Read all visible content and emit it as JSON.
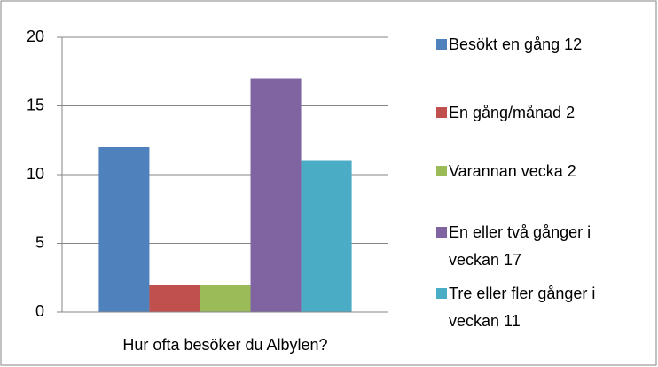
{
  "chart_data": {
    "type": "bar",
    "categories": [
      "Hur ofta besöker du Albylen?"
    ],
    "series": [
      {
        "name": "Besökt en gång 12",
        "color": "#4f81bd",
        "values": [
          12
        ]
      },
      {
        "name": "En gång/månad 2",
        "color": "#c0504d",
        "values": [
          2
        ]
      },
      {
        "name": "Varannan vecka 2",
        "color": "#9bbb59",
        "values": [
          2
        ]
      },
      {
        "name": "En eller två gånger i veckan 17",
        "color": "#8064a2",
        "values": [
          17
        ]
      },
      {
        "name": "Tre eller fler gånger i veckan 11",
        "color": "#4bacc6",
        "values": [
          11
        ]
      }
    ],
    "ylim": [
      0,
      20
    ],
    "yticks": [
      0,
      5,
      10,
      15,
      20
    ],
    "grid": true,
    "legend": "right"
  }
}
